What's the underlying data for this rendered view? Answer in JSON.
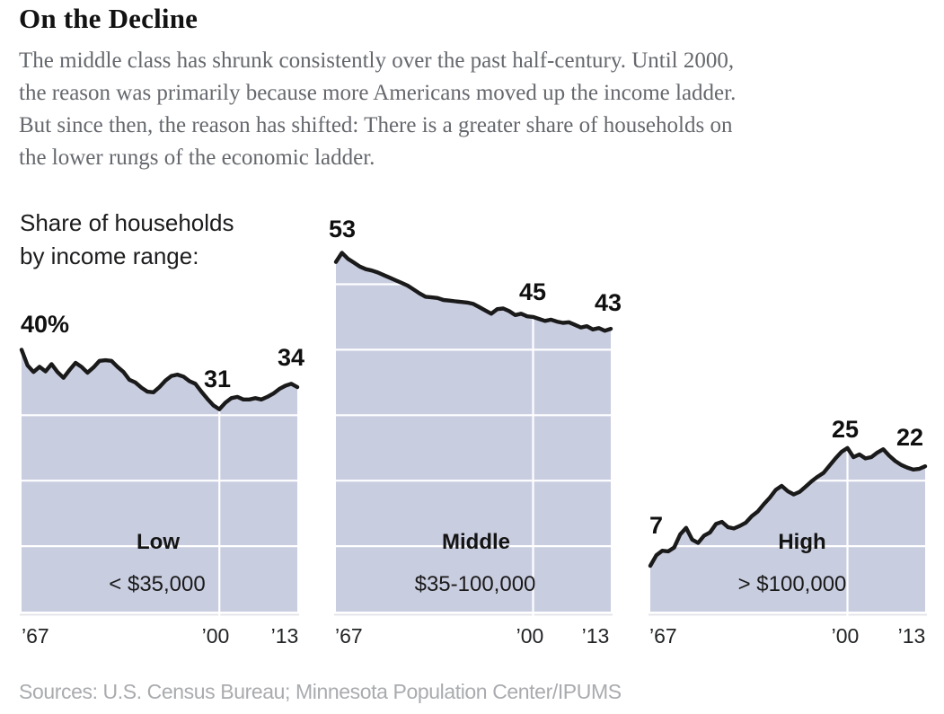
{
  "header": {
    "title": "On the Decline",
    "description": "The middle class has shrunk consistently over the past half-century. Until 2000,\nthe reason was primarily because more Americans moved up the income ladder.\nBut since then, the reason has shifted: There is a greater share of households on\nthe lower rungs of the economic ladder."
  },
  "legend_label": "Share of households\nby income range:",
  "source_note": "Sources: U.S. Census Bureau; Minnesota Population Center/IPUMS",
  "colors": {
    "area_fill": "#c9cde0",
    "data_line": "#1a1a1a",
    "gridline": "#ffffff",
    "axis_line": "#e2e3e8",
    "body_text_gray": "#65686d",
    "source_gray": "#a9abae"
  },
  "chart_data": {
    "type": "area",
    "title": "Share of households by income range",
    "y_unit": "percent of households",
    "x_start_year": 1967,
    "x_end_year": 2013,
    "gridline_year": 2000,
    "gridline_interval": 10,
    "legend_position": "top-left",
    "charts": [
      {
        "name": "Low",
        "range_label": "< $35,000",
        "annotations": {
          "start": "40%",
          "at_2000": "31",
          "end": "34"
        },
        "x_ticks": [
          "’67",
          "’00",
          "’13"
        ],
        "values": [
          40.0,
          37.6,
          36.6,
          37.4,
          36.7,
          37.8,
          36.6,
          35.7,
          36.9,
          38.0,
          37.4,
          36.5,
          37.3,
          38.3,
          38.4,
          38.3,
          37.4,
          36.6,
          35.4,
          35.0,
          34.2,
          33.6,
          33.5,
          34.3,
          35.3,
          36.0,
          36.2,
          35.9,
          35.2,
          34.8,
          33.6,
          32.5,
          31.5,
          30.9,
          31.9,
          32.6,
          32.8,
          32.4,
          32.4,
          32.6,
          32.4,
          32.8,
          33.3,
          34.0,
          34.5,
          34.8,
          34.3
        ]
      },
      {
        "name": "Middle",
        "range_label": "$35-100,000",
        "annotations": {
          "start": "53",
          "at_2000": "45",
          "end": "43"
        },
        "x_ticks": [
          "’67",
          "’00",
          "’13"
        ],
        "values": [
          53.4,
          54.8,
          53.9,
          53.3,
          52.7,
          52.3,
          52.1,
          51.8,
          51.4,
          51.0,
          50.6,
          50.2,
          49.8,
          49.2,
          48.6,
          48.1,
          48.0,
          47.9,
          47.6,
          47.5,
          47.4,
          47.3,
          47.2,
          47.0,
          46.5,
          46.0,
          45.5,
          46.2,
          46.3,
          45.9,
          45.3,
          45.5,
          45.1,
          45.0,
          44.7,
          44.4,
          44.6,
          44.3,
          44.1,
          44.2,
          43.8,
          43.4,
          43.6,
          43.1,
          43.3,
          42.9,
          43.2
        ]
      },
      {
        "name": "High",
        "range_label": "> $100,000",
        "annotations": {
          "start": "7",
          "at_2000": "25",
          "end": "22"
        },
        "x_ticks": [
          "’67",
          "’00",
          "’13"
        ],
        "values": [
          7.0,
          8.6,
          9.3,
          9.2,
          9.8,
          11.8,
          12.8,
          11.0,
          10.5,
          11.6,
          12.1,
          13.4,
          13.7,
          12.9,
          12.7,
          13.1,
          13.6,
          14.6,
          15.3,
          16.4,
          17.4,
          18.6,
          19.2,
          18.4,
          17.9,
          18.3,
          19.1,
          19.9,
          20.6,
          21.2,
          22.3,
          23.4,
          24.4,
          25.0,
          23.6,
          24.0,
          23.4,
          23.6,
          24.3,
          24.8,
          23.8,
          23.0,
          22.4,
          22.0,
          21.7,
          21.8,
          22.2
        ]
      }
    ]
  }
}
